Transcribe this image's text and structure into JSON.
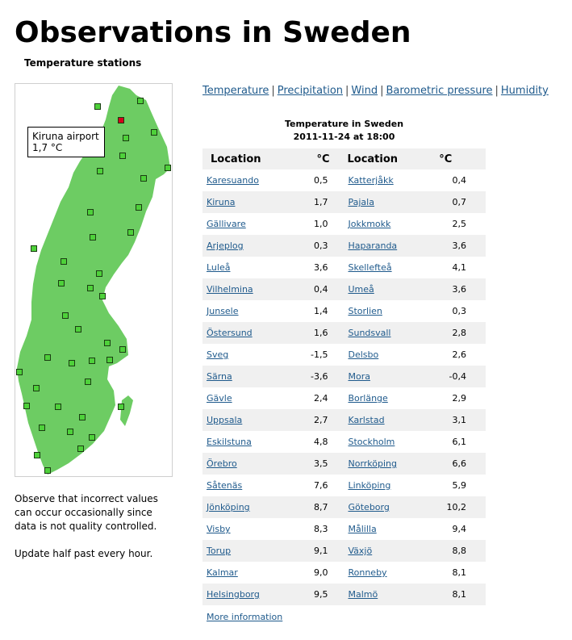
{
  "page": {
    "title": "Observations in Sweden",
    "subtitle": "Temperature stations"
  },
  "nav": {
    "links": [
      "Temperature",
      "Precipitation",
      "Wind",
      "Barometric pressure",
      "Humidity"
    ],
    "separator": "|"
  },
  "tooltip": {
    "station": "Kiruna airport",
    "value": "1,7 °C"
  },
  "notes": {
    "quality": "Observe that incorrect values can occur occasionally since data is not quality controlled.",
    "update": "Update half past every hour."
  },
  "table": {
    "title": "Temperature in Sweden",
    "timestamp": "2011-11-24 at 18:00",
    "headers": [
      "Location",
      "°C",
      "Location",
      "°C"
    ],
    "rows": [
      [
        "Karesuando",
        "0,5",
        "Katterjåkk",
        "0,4"
      ],
      [
        "Kiruna",
        "1,7",
        "Pajala",
        "0,7"
      ],
      [
        "Gällivare",
        "1,0",
        "Jokkmokk",
        "2,5"
      ],
      [
        "Arjeplog",
        "0,3",
        "Haparanda",
        "3,6"
      ],
      [
        "Luleå",
        "3,6",
        "Skellefteå",
        "4,1"
      ],
      [
        "Vilhelmina",
        "0,4",
        "Umeå",
        "3,6"
      ],
      [
        "Junsele",
        "1,4",
        "Storlien",
        "0,3"
      ],
      [
        "Östersund",
        "1,6",
        "Sundsvall",
        "2,8"
      ],
      [
        "Sveg",
        "-1,5",
        "Delsbo",
        "2,6"
      ],
      [
        "Särna",
        "-3,6",
        "Mora",
        "-0,4"
      ],
      [
        "Gävle",
        "2,4",
        "Borlänge",
        "2,9"
      ],
      [
        "Uppsala",
        "2,7",
        "Karlstad",
        "3,1"
      ],
      [
        "Eskilstuna",
        "4,8",
        "Stockholm",
        "6,1"
      ],
      [
        "Örebro",
        "3,5",
        "Norrköping",
        "6,6"
      ],
      [
        "Såtenäs",
        "7,6",
        "Linköping",
        "5,9"
      ],
      [
        "Jönköping",
        "8,7",
        "Göteborg",
        "10,2"
      ],
      [
        "Visby",
        "8,3",
        "Målilla",
        "9,4"
      ],
      [
        "Torup",
        "9,1",
        "Växjö",
        "8,8"
      ],
      [
        "Kalmar",
        "9,0",
        "Ronneby",
        "8,1"
      ],
      [
        "Helsingborg",
        "9,5",
        "Malmö",
        "8,1"
      ]
    ],
    "more_link": "More information"
  },
  "colors": {
    "land": "#6dcc63",
    "station": "#4ed13a",
    "selected_station": "#d6001c",
    "link": "#1f5a8c",
    "row_alt": "#f0f0f0"
  }
}
